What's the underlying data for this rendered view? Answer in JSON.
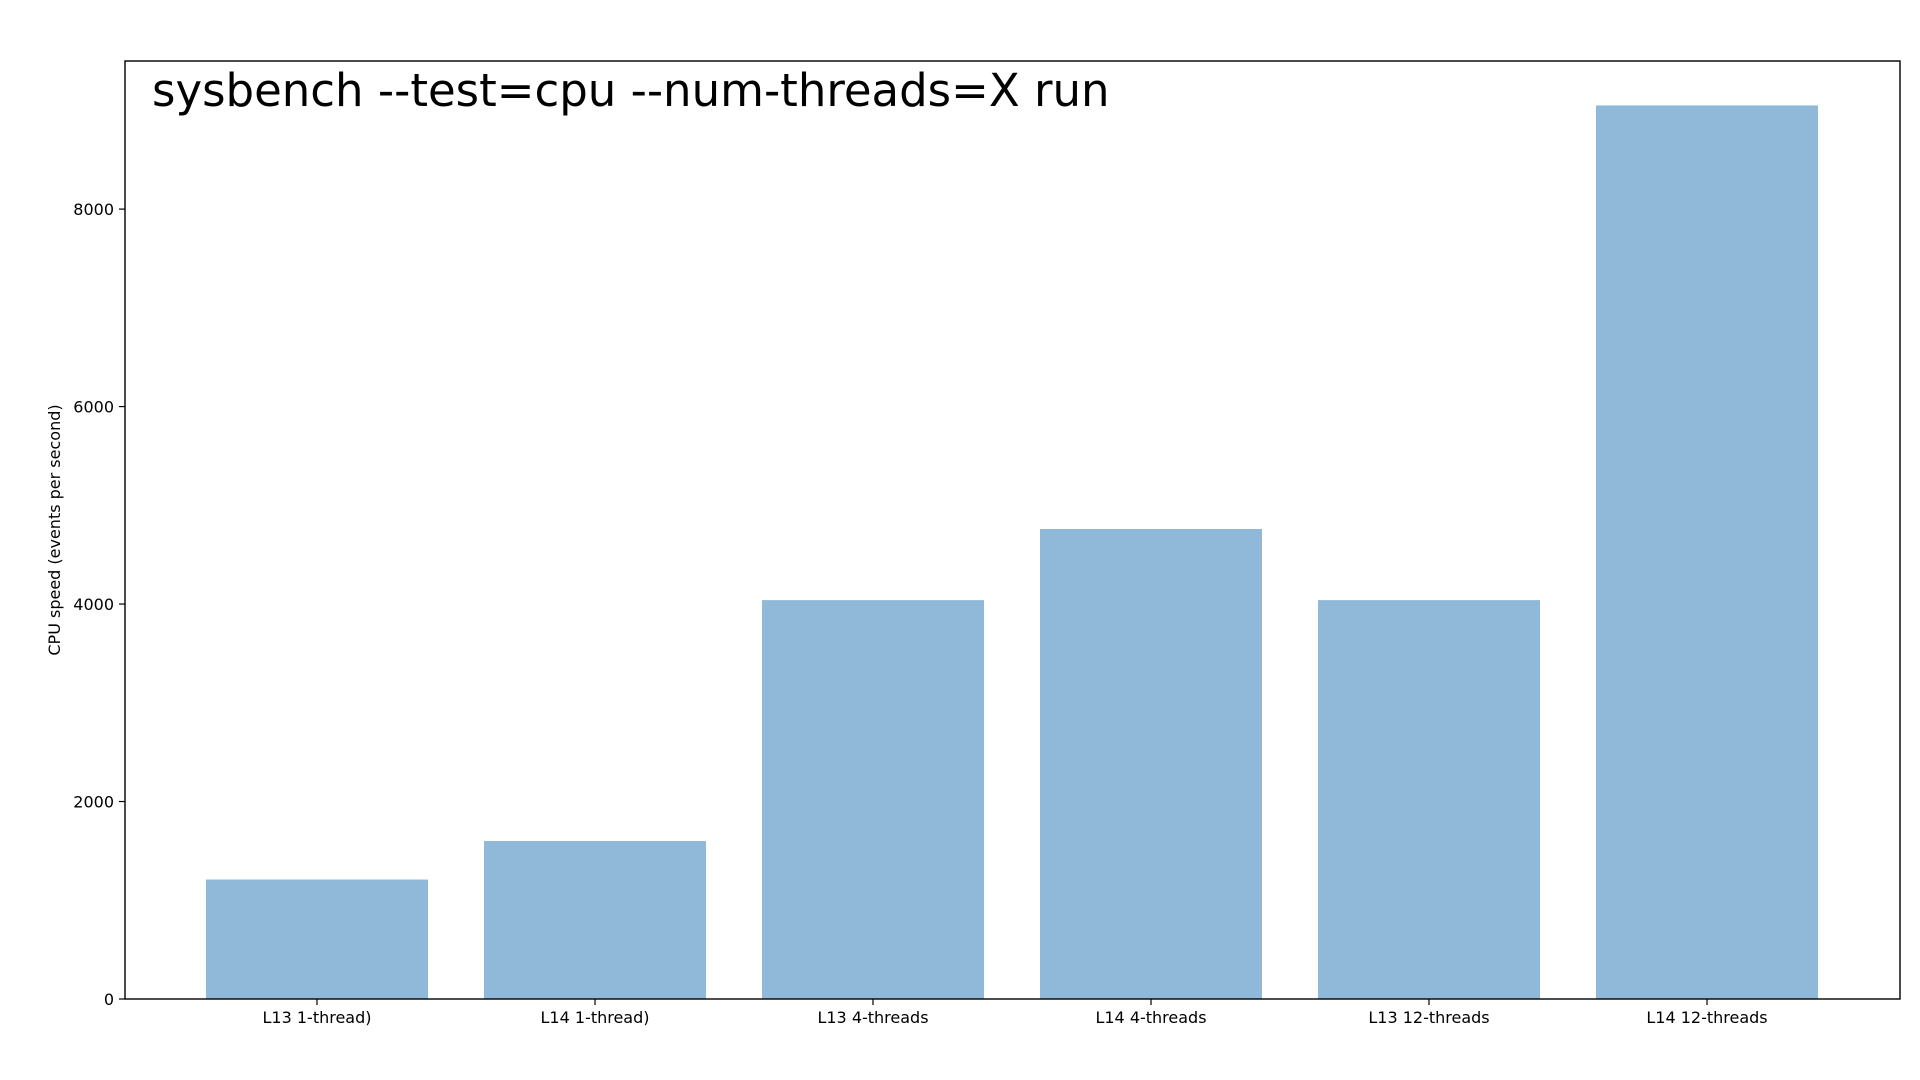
{
  "chart_data": {
    "type": "bar",
    "title": "sysbench --test=cpu --num-threads=X run",
    "xlabel": "",
    "ylabel": "CPU speed (events per second)",
    "categories": [
      "L13 1-thread)",
      "L14 1-thread)",
      "L13 4-threads",
      "L14 4-threads",
      "L13 12-threads",
      "L14 12-threads"
    ],
    "values": [
      1210,
      1600,
      4040,
      4760,
      4040,
      9050
    ],
    "ylim": [
      0,
      9500
    ],
    "yticks": [
      0,
      2000,
      4000,
      6000,
      8000
    ],
    "grid": false,
    "legend": "none",
    "colors": {
      "bar": "#90b9d9",
      "axis": "#000000",
      "background": "#ffffff"
    }
  }
}
